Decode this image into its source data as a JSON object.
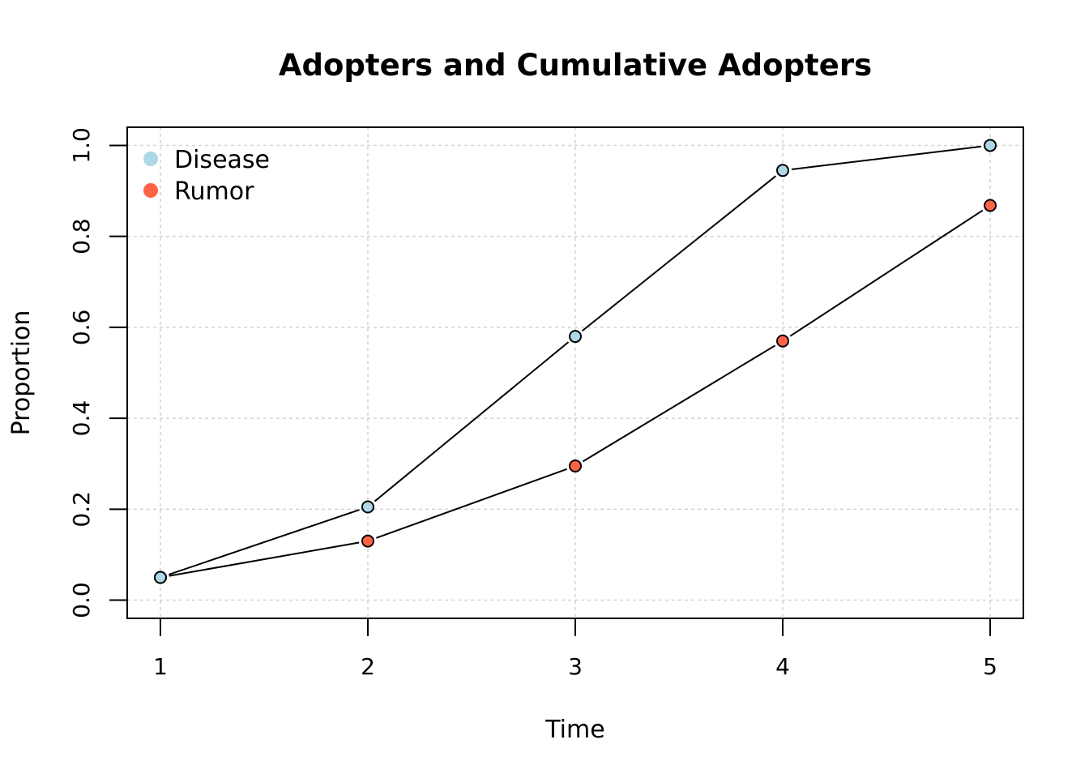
{
  "chart_data": {
    "type": "line",
    "title": "Adopters and Cumulative Adopters",
    "xlabel": "Time",
    "ylabel": "Proportion",
    "x": [
      1,
      2,
      3,
      4,
      5
    ],
    "xticks": [
      "1",
      "2",
      "3",
      "4",
      "5"
    ],
    "yticks": [
      "0.0",
      "0.2",
      "0.4",
      "0.6",
      "0.8",
      "1.0"
    ],
    "xlim": [
      0.84,
      5.16
    ],
    "ylim": [
      -0.04,
      1.04
    ],
    "grid": true,
    "legend_position": "top-left",
    "series": [
      {
        "name": "Disease",
        "color": "#add8e6",
        "values": [
          0.05,
          0.205,
          0.58,
          0.945,
          1.0
        ]
      },
      {
        "name": "Rumor",
        "color": "#ff6347",
        "values": [
          0.05,
          0.13,
          0.295,
          0.57,
          0.868
        ]
      }
    ]
  }
}
